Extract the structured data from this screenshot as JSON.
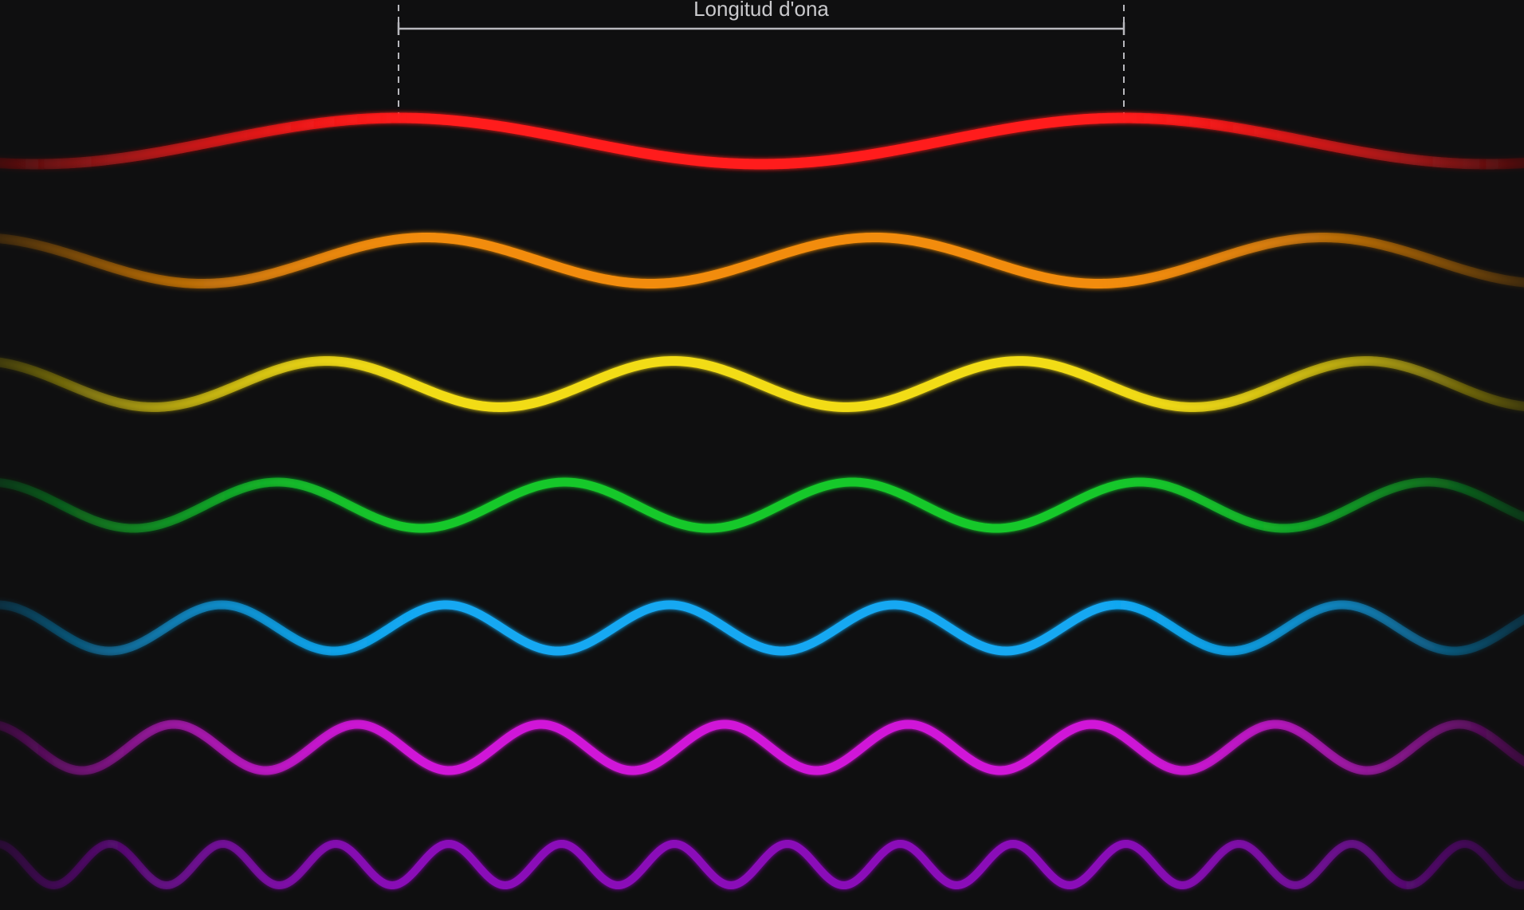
{
  "wavelength_label": "Longitud d'ona",
  "colors": {
    "background": "#0f0f10",
    "annotation": "#b8b8bd",
    "red": "#ff1a1a",
    "orange": "#f28c0c",
    "yellow": "#f2dc14",
    "green": "#14c82c",
    "blue": "#12a8f2",
    "magenta": "#d018d8",
    "violet": "#8a10b8"
  },
  "waves": [
    {
      "name": "red-wave",
      "color": "red",
      "cycles_visible": 2.1
    },
    {
      "name": "orange-wave",
      "color": "orange",
      "cycles_visible": 3.4
    },
    {
      "name": "yellow-wave",
      "color": "yellow",
      "cycles_visible": 4.4
    },
    {
      "name": "green-wave",
      "color": "green",
      "cycles_visible": 5.3
    },
    {
      "name": "blue-wave",
      "color": "blue",
      "cycles_visible": 6.8
    },
    {
      "name": "magenta-wave",
      "color": "magenta",
      "cycles_visible": 8.3
    },
    {
      "name": "violet-wave",
      "color": "violet",
      "cycles_visible": 13.5
    }
  ]
}
